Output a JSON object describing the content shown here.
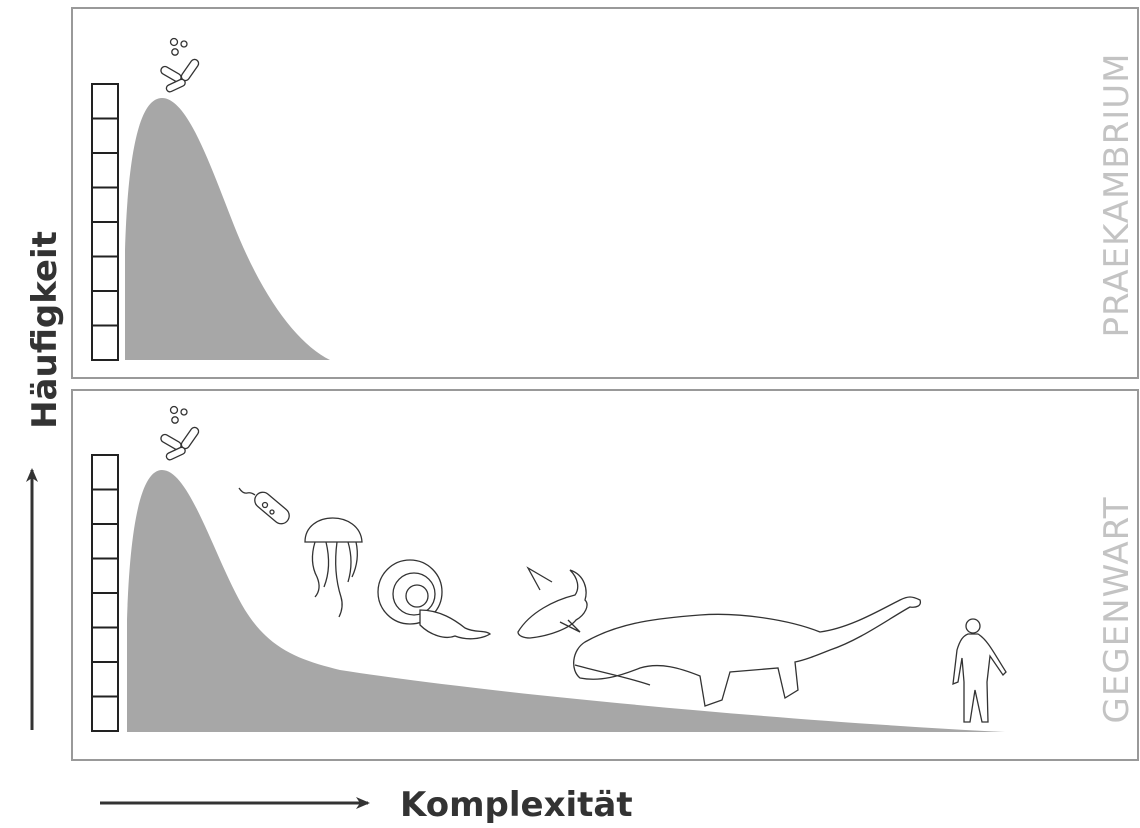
{
  "axes": {
    "y_label": "Häufigkeit",
    "x_label": "Komplexität"
  },
  "panels": [
    {
      "label": "PRAEKAMBRIUM"
    },
    {
      "label": "GEGENWART"
    }
  ]
}
